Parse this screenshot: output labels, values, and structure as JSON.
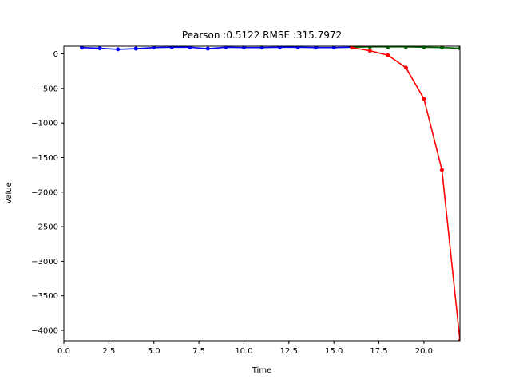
{
  "chart_data": {
    "type": "line",
    "title": "Pearson :0.5122  RMSE :315.7972",
    "xlabel": "Time",
    "ylabel": "Value",
    "xlim": [
      0,
      22
    ],
    "ylim": [
      -4150,
      110
    ],
    "grid": false,
    "x_ticks": [
      0.0,
      2.5,
      5.0,
      7.5,
      10.0,
      12.5,
      15.0,
      17.5,
      20.0
    ],
    "x_tick_labels": [
      "0.0",
      "2.5",
      "5.0",
      "7.5",
      "10.0",
      "12.5",
      "15.0",
      "17.5",
      "20.0"
    ],
    "y_ticks": [
      0,
      -500,
      -1000,
      -1500,
      -2000,
      -2500,
      -3000,
      -3500,
      -4000
    ],
    "y_tick_labels": [
      "0",
      "−500",
      "−1000",
      "−1500",
      "−2000",
      "−2500",
      "−3000",
      "−3500",
      "−4000"
    ],
    "series": [
      {
        "color": "#0000ff",
        "x": [
          1,
          2,
          3,
          4,
          5,
          6,
          7,
          8,
          9,
          10,
          11,
          12,
          13,
          14,
          15,
          16
        ],
        "y": [
          90,
          80,
          65,
          75,
          90,
          95,
          95,
          75,
          95,
          90,
          90,
          95,
          95,
          90,
          90,
          95
        ]
      },
      {
        "color": "#006400",
        "x": [
          16,
          17,
          18,
          19,
          20,
          21,
          22
        ],
        "y": [
          95,
          100,
          100,
          100,
          95,
          90,
          80
        ]
      },
      {
        "color": "#ff0000",
        "x": [
          16,
          17,
          18,
          19,
          20,
          21,
          22
        ],
        "y": [
          90,
          45,
          -20,
          -200,
          -650,
          -1680,
          -4150
        ]
      }
    ]
  }
}
